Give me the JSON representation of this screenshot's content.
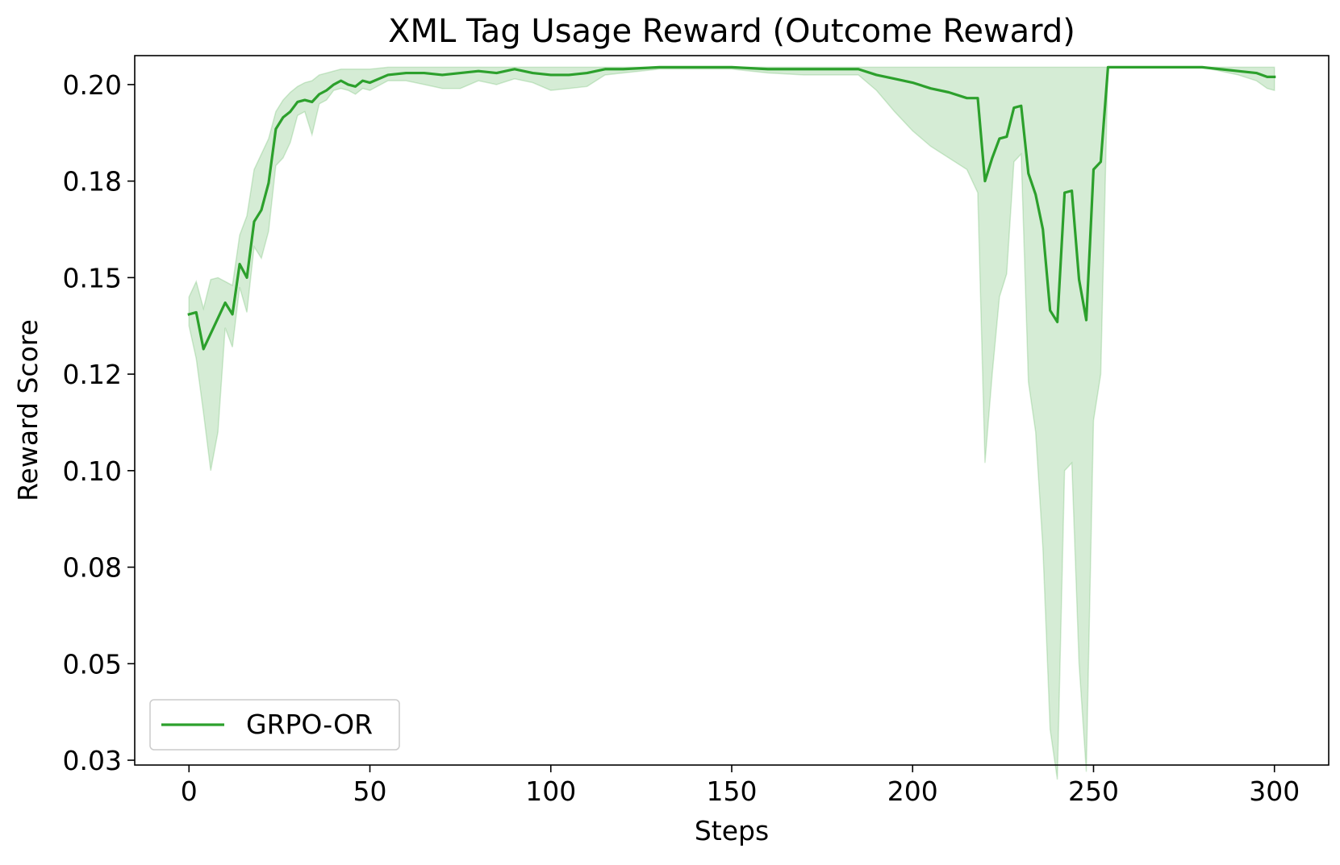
{
  "chart_data": {
    "type": "line",
    "title": "XML Tag Usage Reward (Outcome Reward)",
    "xlabel": "Steps",
    "ylabel": "Reward Score",
    "xlim": [
      -15,
      315
    ],
    "ylim": [
      0.02375,
      0.2075
    ],
    "xticks": [
      0,
      50,
      100,
      150,
      200,
      250,
      300
    ],
    "xtick_labels": [
      "0",
      "50",
      "100",
      "150",
      "200",
      "250",
      "300"
    ],
    "yticks": [
      0.025,
      0.05,
      0.075,
      0.1,
      0.125,
      0.15,
      0.175,
      0.2
    ],
    "ytick_labels": [
      "0.03",
      "0.05",
      "0.08",
      "0.10",
      "0.12",
      "0.15",
      "0.18",
      "0.20"
    ],
    "grid": false,
    "legend_position": "lower-left",
    "series": [
      {
        "name": "GRPO-OR",
        "color": "#2ca02c",
        "band_color": "#2ca02c",
        "x": [
          0,
          2,
          4,
          6,
          8,
          10,
          12,
          14,
          16,
          18,
          20,
          22,
          24,
          26,
          28,
          30,
          32,
          34,
          36,
          38,
          40,
          42,
          44,
          46,
          48,
          50,
          55,
          60,
          65,
          70,
          75,
          80,
          85,
          90,
          95,
          100,
          105,
          110,
          115,
          120,
          130,
          140,
          150,
          160,
          170,
          180,
          185,
          190,
          195,
          200,
          205,
          210,
          215,
          218,
          220,
          222,
          224,
          226,
          228,
          230,
          232,
          234,
          236,
          238,
          240,
          242,
          244,
          246,
          248,
          250,
          252,
          254,
          260,
          270,
          280,
          290,
          295,
          298,
          300
        ],
        "y": [
          0.1405,
          0.141,
          0.1315,
          0.1355,
          0.1395,
          0.1435,
          0.1405,
          0.1535,
          0.15,
          0.1645,
          0.1675,
          0.1745,
          0.1885,
          0.1915,
          0.193,
          0.1955,
          0.196,
          0.1955,
          0.1975,
          0.1985,
          0.2,
          0.201,
          0.2,
          0.1995,
          0.201,
          0.2005,
          0.2025,
          0.203,
          0.203,
          0.2025,
          0.203,
          0.2035,
          0.203,
          0.204,
          0.203,
          0.2025,
          0.2025,
          0.203,
          0.204,
          0.204,
          0.2045,
          0.2045,
          0.2045,
          0.204,
          0.204,
          0.204,
          0.204,
          0.2025,
          0.2015,
          0.2005,
          0.199,
          0.198,
          0.1965,
          0.1965,
          0.175,
          0.181,
          0.186,
          0.1865,
          0.194,
          0.1945,
          0.177,
          0.1715,
          0.1625,
          0.1415,
          0.1385,
          0.172,
          0.1725,
          0.1495,
          0.139,
          0.178,
          0.18,
          0.2045,
          0.2045,
          0.2045,
          0.2045,
          0.2035,
          0.203,
          0.202,
          0.202
        ],
        "lower": [
          0.1375,
          0.129,
          0.115,
          0.1,
          0.11,
          0.137,
          0.132,
          0.1475,
          0.141,
          0.158,
          0.155,
          0.162,
          0.179,
          0.181,
          0.185,
          0.192,
          0.193,
          0.187,
          0.195,
          0.196,
          0.1985,
          0.199,
          0.1985,
          0.1975,
          0.199,
          0.1985,
          0.201,
          0.201,
          0.2,
          0.199,
          0.199,
          0.201,
          0.2,
          0.2015,
          0.2005,
          0.1985,
          0.199,
          0.1995,
          0.2025,
          0.203,
          0.204,
          0.204,
          0.204,
          0.203,
          0.2025,
          0.2025,
          0.2025,
          0.1985,
          0.193,
          0.188,
          0.184,
          0.181,
          0.178,
          0.172,
          0.102,
          0.125,
          0.145,
          0.151,
          0.18,
          0.182,
          0.123,
          0.11,
          0.08,
          0.033,
          0.02,
          0.1,
          0.102,
          0.05,
          0.022,
          0.113,
          0.125,
          0.2045,
          0.2045,
          0.2045,
          0.2045,
          0.2025,
          0.201,
          0.199,
          0.1985
        ],
        "upper": [
          0.145,
          0.149,
          0.142,
          0.1495,
          0.15,
          0.149,
          0.148,
          0.161,
          0.166,
          0.178,
          0.182,
          0.186,
          0.193,
          0.196,
          0.198,
          0.1995,
          0.2005,
          0.201,
          0.2025,
          0.203,
          0.2035,
          0.204,
          0.204,
          0.204,
          0.204,
          0.204,
          0.2045,
          0.2045,
          0.2045,
          0.2045,
          0.2045,
          0.2045,
          0.2045,
          0.2045,
          0.2045,
          0.2045,
          0.2045,
          0.2045,
          0.2045,
          0.2045,
          0.2045,
          0.2045,
          0.2045,
          0.2045,
          0.2045,
          0.2045,
          0.2045,
          0.2045,
          0.2045,
          0.2045,
          0.2045,
          0.2045,
          0.2045,
          0.2045,
          0.2045,
          0.2045,
          0.2045,
          0.2045,
          0.2045,
          0.2045,
          0.2045,
          0.2045,
          0.2045,
          0.2045,
          0.2045,
          0.2045,
          0.2045,
          0.2045,
          0.2045,
          0.2045,
          0.2045,
          0.2045,
          0.2045,
          0.2045,
          0.2045,
          0.2045,
          0.2045,
          0.2045,
          0.2045
        ]
      }
    ]
  }
}
